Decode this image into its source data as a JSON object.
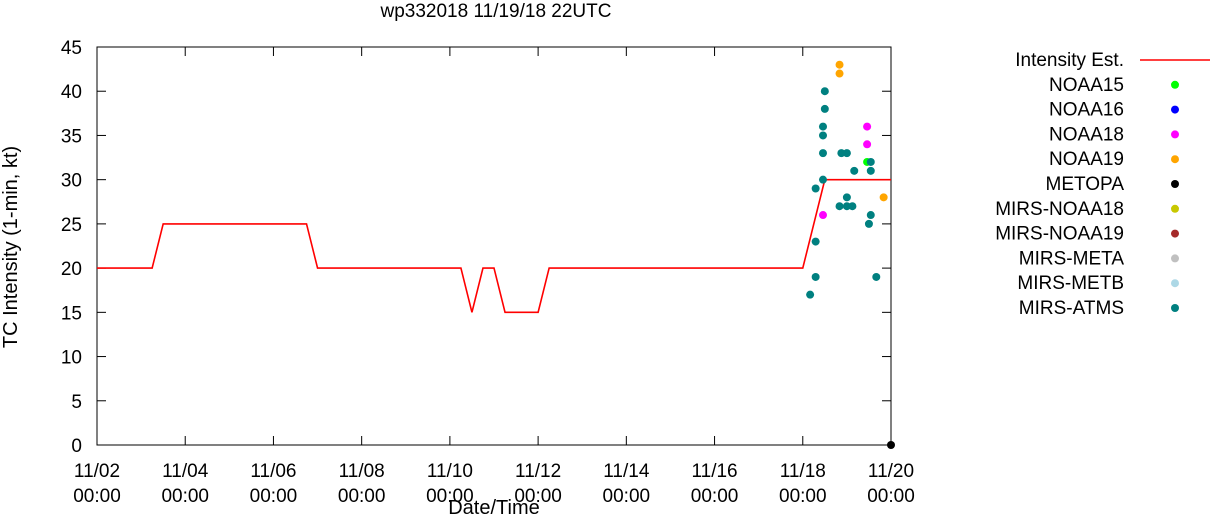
{
  "chart_data": {
    "type": "line",
    "title": "wp332018 11/19/18 22UTC",
    "xlabel": "Date/Time",
    "ylabel": "TC Intensity (1-min, kt)",
    "ylim": [
      0,
      45
    ],
    "yticks": [
      "0",
      "5",
      "10",
      "15",
      "20",
      "25",
      "30",
      "35",
      "40",
      "45"
    ],
    "xlim": [
      "11/02 00:00",
      "11/20 00:00"
    ],
    "xticks": [
      {
        "date": "11/02",
        "time": "00:00"
      },
      {
        "date": "11/04",
        "time": "00:00"
      },
      {
        "date": "11/06",
        "time": "00:00"
      },
      {
        "date": "11/08",
        "time": "00:00"
      },
      {
        "date": "11/10",
        "time": "00:00"
      },
      {
        "date": "11/12",
        "time": "00:00"
      },
      {
        "date": "11/14",
        "time": "00:00"
      },
      {
        "date": "11/16",
        "time": "00:00"
      },
      {
        "date": "11/18",
        "time": "00:00"
      },
      {
        "date": "11/20",
        "time": "00:00"
      }
    ],
    "grid": false,
    "legend_position": "right",
    "series": [
      {
        "name": "Intensity Est.",
        "type": "line",
        "color": "#ff0000",
        "points": [
          {
            "x": "11/02 00:00",
            "y": 20
          },
          {
            "x": "11/03 06:00",
            "y": 20
          },
          {
            "x": "11/03 12:00",
            "y": 25
          },
          {
            "x": "11/06 18:00",
            "y": 25
          },
          {
            "x": "11/07 00:00",
            "y": 20
          },
          {
            "x": "11/10 06:00",
            "y": 20
          },
          {
            "x": "11/10 12:00",
            "y": 15
          },
          {
            "x": "11/10 18:00",
            "y": 20
          },
          {
            "x": "11/11 00:00",
            "y": 20
          },
          {
            "x": "11/11 06:00",
            "y": 15
          },
          {
            "x": "11/12 00:00",
            "y": 15
          },
          {
            "x": "11/12 06:00",
            "y": 20
          },
          {
            "x": "11/18 00:00",
            "y": 20
          },
          {
            "x": "11/18 12:00",
            "y": 30
          },
          {
            "x": "11/20 00:00",
            "y": 30
          }
        ]
      },
      {
        "name": "NOAA15",
        "type": "scatter",
        "color": "#00ff00",
        "points": [
          {
            "x": "11/19 11:00",
            "y": 32
          }
        ]
      },
      {
        "name": "NOAA16",
        "type": "scatter",
        "color": "#0000ff",
        "points": []
      },
      {
        "name": "NOAA18",
        "type": "scatter",
        "color": "#ff00ff",
        "points": [
          {
            "x": "11/18 11:00",
            "y": 26
          },
          {
            "x": "11/19 11:00",
            "y": 36
          },
          {
            "x": "11/19 11:00",
            "y": 34
          }
        ]
      },
      {
        "name": "NOAA19",
        "type": "scatter",
        "color": "#ffa500",
        "points": [
          {
            "x": "11/18 20:00",
            "y": 43
          },
          {
            "x": "11/18 20:00",
            "y": 42
          },
          {
            "x": "11/19 20:00",
            "y": 28
          }
        ]
      },
      {
        "name": "METOPA",
        "type": "scatter",
        "color": "#000000",
        "points": [
          {
            "x": "11/20 00:00",
            "y": 0
          }
        ]
      },
      {
        "name": "MIRS-NOAA18",
        "type": "scatter",
        "color": "#c8c800",
        "points": []
      },
      {
        "name": "MIRS-NOAA19",
        "type": "scatter",
        "color": "#a52a2a",
        "points": []
      },
      {
        "name": "MIRS-META",
        "type": "scatter",
        "color": "#c0c0c0",
        "points": []
      },
      {
        "name": "MIRS-METB",
        "type": "scatter",
        "color": "#add8e6",
        "points": []
      },
      {
        "name": "MIRS-ATMS",
        "type": "scatter",
        "color": "#008080",
        "points": [
          {
            "x": "11/18 04:00",
            "y": 17
          },
          {
            "x": "11/18 07:00",
            "y": 19
          },
          {
            "x": "11/18 07:00",
            "y": 23
          },
          {
            "x": "11/18 07:00",
            "y": 29
          },
          {
            "x": "11/18 11:00",
            "y": 30
          },
          {
            "x": "11/18 11:00",
            "y": 33
          },
          {
            "x": "11/18 11:00",
            "y": 35
          },
          {
            "x": "11/18 11:00",
            "y": 36
          },
          {
            "x": "11/18 12:00",
            "y": 38
          },
          {
            "x": "11/18 12:00",
            "y": 40
          },
          {
            "x": "11/18 20:00",
            "y": 27
          },
          {
            "x": "11/18 21:00",
            "y": 33
          },
          {
            "x": "11/19 00:00",
            "y": 27
          },
          {
            "x": "11/19 00:00",
            "y": 28
          },
          {
            "x": "11/19 00:00",
            "y": 33
          },
          {
            "x": "11/19 03:00",
            "y": 27
          },
          {
            "x": "11/19 04:00",
            "y": 31
          },
          {
            "x": "11/19 12:00",
            "y": 25
          },
          {
            "x": "11/19 13:00",
            "y": 26
          },
          {
            "x": "11/19 13:00",
            "y": 31
          },
          {
            "x": "11/19 13:00",
            "y": 32
          },
          {
            "x": "11/19 16:00",
            "y": 19
          }
        ]
      }
    ]
  }
}
